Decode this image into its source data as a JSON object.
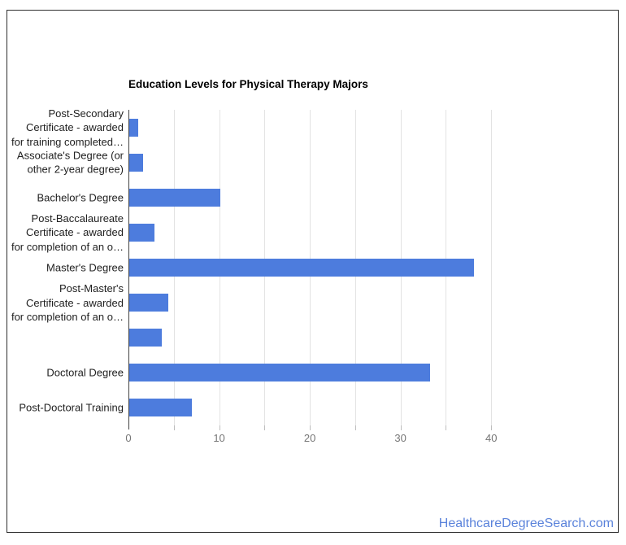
{
  "chart_data": {
    "type": "bar",
    "orientation": "horizontal",
    "title": "Education Levels for Physical Therapy Majors",
    "categories": [
      "Post-Secondary Certificate - awarded for training completed…",
      "Associate's Degree (or other 2-year degree)",
      "Bachelor's Degree",
      "Post-Baccalaureate Certificate - awarded for completion of an o…",
      "Master's Degree",
      "Post-Master's Certificate - awarded for completion of an o…",
      "",
      "Doctoral Degree",
      "Post-Doctoral Training"
    ],
    "category_display_lines": [
      [
        "Post-Secondary",
        "Certificate - awarded",
        "for training completed…"
      ],
      [
        "Associate's Degree (or",
        "other 2-year degree)"
      ],
      [
        "Bachelor's Degree"
      ],
      [
        "Post-Baccalaureate",
        "Certificate - awarded",
        "for completion of an o…"
      ],
      [
        "Master's Degree"
      ],
      [
        "Post-Master's",
        "Certificate - awarded",
        "for completion of an o…"
      ],
      [
        ""
      ],
      [
        "Doctoral Degree"
      ],
      [
        "Post-Doctoral Training"
      ]
    ],
    "values": [
      1,
      1.5,
      10,
      2.8,
      38,
      4.3,
      3.6,
      33.2,
      6.9
    ],
    "xlabel": "",
    "ylabel": "",
    "xlim": [
      0,
      45
    ],
    "x_tick_labels": [
      "0",
      "10",
      "20",
      "30",
      "40"
    ],
    "x_tick_values": [
      0,
      10,
      20,
      30,
      40
    ],
    "gridline_step": 5,
    "grid": true,
    "legend_position": "none",
    "colors": {
      "bar": "#4d7cdd",
      "gridline": "#e3e3e3",
      "axis_line": "#424242",
      "tick_mark": "#bdbdbd",
      "tick_label": "#757575",
      "category_label": "#212121",
      "title": "#000000"
    }
  },
  "footer": {
    "link_text": "HealthcareDegreeSearch.com",
    "link_color": "#5b83db"
  }
}
